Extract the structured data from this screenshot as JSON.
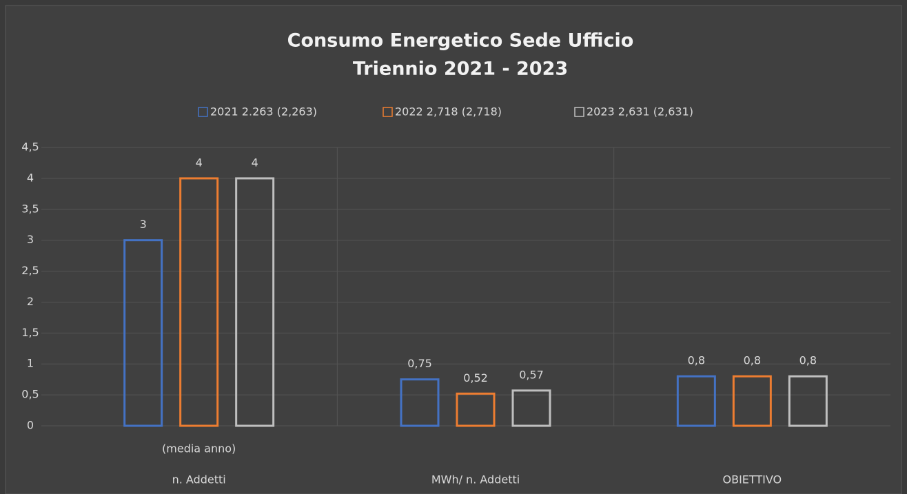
{
  "chart_data": {
    "type": "bar",
    "title": [
      "Consumo Energetico Sede Ufficio",
      "Triennio 2021 - 2023"
    ],
    "categories": [
      "n. Addetti",
      "MWh/ n. Addetti",
      "OBIETTIVO"
    ],
    "annotations": [
      "(media anno)"
    ],
    "series": [
      {
        "name": "2021 2.263 (2,263)",
        "color": "#4472c4",
        "values": [
          3,
          0.75,
          0.8
        ],
        "value_labels": [
          "3",
          "0,75",
          "0,8"
        ]
      },
      {
        "name": "2022 2,718 (2,718)",
        "color": "#ed7d31",
        "values": [
          4,
          0.52,
          0.8
        ],
        "value_labels": [
          "4",
          "0,52",
          "0,8"
        ]
      },
      {
        "name": "2023 2,631 (2,631)",
        "color": "#bfbfbf",
        "values": [
          4,
          0.57,
          0.8
        ],
        "value_labels": [
          "4",
          "0,57",
          "0,8"
        ]
      }
    ],
    "ylim": [
      0,
      4.5
    ],
    "yticks": [
      0,
      {
        "value": 0.5,
        "label": "0,5"
      },
      1,
      {
        "value": 1.5,
        "label": "1,5"
      },
      2,
      {
        "value": 2.5,
        "label": "2,5"
      },
      3,
      {
        "value": 3.5,
        "label": "3,5"
      },
      4,
      {
        "value": 4.5,
        "label": "4,5"
      }
    ],
    "grid": true,
    "legend": "top"
  }
}
